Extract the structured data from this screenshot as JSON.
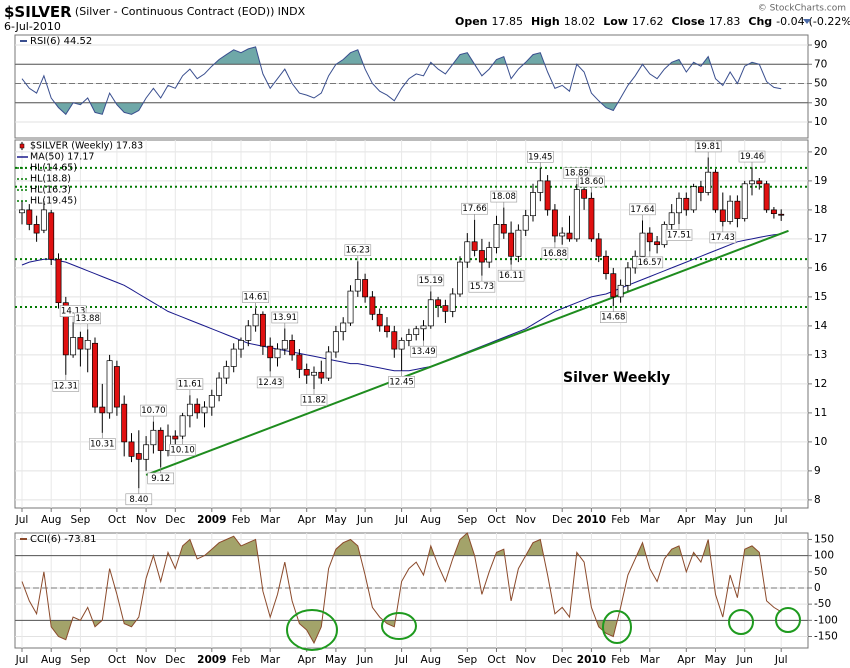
{
  "header": {
    "symbol": "$SILVER",
    "description": "(Silver - Continuous Contract (EOD))",
    "exchange": "INDX",
    "date": "6-Jul-2010",
    "quote": [
      {
        "label": "Open",
        "value": 17.85
      },
      {
        "label": "High",
        "value": 18.02
      },
      {
        "label": "Low",
        "value": 17.62
      },
      {
        "label": "Close",
        "value": 17.83
      },
      {
        "label": "Chg",
        "value": -0.04,
        "extra": "(-0.22%)"
      }
    ],
    "credit": "© StockCharts.com"
  },
  "chart_data": [
    {
      "type": "line",
      "title": "RSI(6) 44.52",
      "color": "#3a4f8f",
      "fill_color": "#6fa8a8",
      "values": [
        55,
        45,
        40,
        58,
        35,
        25,
        18,
        30,
        28,
        35,
        20,
        18,
        40,
        28,
        20,
        18,
        22,
        35,
        45,
        35,
        48,
        45,
        58,
        65,
        55,
        60,
        68,
        75,
        80,
        85,
        82,
        86,
        88,
        60,
        45,
        55,
        65,
        50,
        40,
        38,
        35,
        40,
        58,
        70,
        75,
        82,
        85,
        65,
        50,
        42,
        38,
        32,
        45,
        55,
        60,
        58,
        72,
        65,
        60,
        70,
        80,
        82,
        70,
        58,
        65,
        75,
        78,
        55,
        65,
        72,
        80,
        82,
        62,
        45,
        48,
        42,
        70,
        62,
        40,
        32,
        25,
        22,
        35,
        48,
        58,
        70,
        60,
        55,
        65,
        72,
        75,
        62,
        72,
        68,
        78,
        55,
        48,
        62,
        50,
        68,
        72,
        70,
        52,
        46,
        44.52
      ],
      "ylim": [
        -6.6,
        100.4
      ],
      "yticks": [
        10,
        30,
        50,
        70,
        90
      ],
      "bands": {
        "upper": 70,
        "center": 50,
        "lower": 30
      }
    },
    {
      "type": "candlestick",
      "annotation_text": "Silver Weekly",
      "categories": [
        "Jul",
        null,
        null,
        null,
        "Aug",
        null,
        null,
        null,
        "Sep",
        null,
        null,
        null,
        null,
        "Oct",
        null,
        null,
        null,
        "Nov",
        null,
        null,
        null,
        "Dec",
        null,
        null,
        null,
        null,
        "2009",
        null,
        null,
        null,
        "Feb",
        null,
        null,
        null,
        "Mar",
        null,
        null,
        null,
        null,
        "Apr",
        null,
        null,
        null,
        "May",
        null,
        null,
        null,
        "Jun",
        null,
        null,
        null,
        null,
        "Jul",
        null,
        null,
        null,
        "Aug",
        null,
        null,
        null,
        null,
        "Sep",
        null,
        null,
        null,
        "Oct",
        null,
        null,
        null,
        "Nov",
        null,
        null,
        null,
        null,
        "Dec",
        null,
        null,
        null,
        "2010",
        null,
        null,
        null,
        "Feb",
        null,
        null,
        null,
        "Mar",
        null,
        null,
        null,
        null,
        "Apr",
        null,
        null,
        null,
        "May",
        null,
        null,
        null,
        "Jun",
        null,
        null,
        null,
        null,
        "Jul"
      ],
      "series": [
        {
          "name": "$SILVER (Weekly) 17.83",
          "up_color": "#ffffff",
          "down_color": "#e01010",
          "open": [
            17.9,
            18.0,
            17.5,
            17.3,
            17.9,
            16.3,
            14.8,
            13.0,
            13.6,
            13.2,
            13.4,
            11.2,
            11.0,
            12.6,
            11.3,
            10.0,
            9.6,
            9.4,
            9.9,
            10.4,
            9.7,
            10.2,
            10.2,
            10.9,
            11.3,
            11.0,
            11.2,
            11.6,
            12.2,
            12.6,
            13.2,
            13.5,
            14.0,
            14.4,
            13.3,
            12.9,
            13.2,
            13.5,
            13.0,
            12.5,
            12.3,
            12.4,
            12.2,
            13.1,
            13.8,
            14.1,
            15.2,
            15.6,
            15.0,
            14.4,
            14.0,
            13.8,
            13.2,
            13.5,
            13.7,
            13.9,
            14.0,
            14.9,
            14.7,
            14.5,
            15.1,
            16.2,
            16.9,
            16.6,
            16.2,
            16.7,
            17.5,
            17.2,
            16.4,
            17.3,
            17.8,
            18.6,
            19.0,
            18.0,
            17.1,
            17.2,
            17.0,
            18.7,
            18.4,
            17.0,
            16.4,
            15.8,
            15.0,
            15.4,
            16.0,
            16.4,
            17.2,
            16.9,
            16.8,
            17.5,
            17.9,
            18.4,
            18.0,
            18.8,
            18.6,
            19.3,
            18.0,
            17.6,
            18.3,
            17.7,
            18.9,
            19.0,
            18.9,
            18.0,
            17.85
          ],
          "high": [
            18.3,
            18.2,
            17.8,
            18.3,
            18.0,
            16.5,
            15.0,
            14.13,
            13.8,
            13.88,
            13.6,
            12.0,
            13.0,
            12.8,
            11.6,
            10.3,
            10.4,
            10.2,
            10.7,
            10.5,
            10.6,
            10.4,
            11.0,
            11.61,
            11.5,
            11.4,
            11.8,
            12.4,
            12.8,
            13.4,
            13.6,
            14.2,
            14.61,
            14.5,
            13.6,
            13.4,
            13.91,
            13.7,
            13.2,
            12.7,
            12.6,
            12.8,
            13.3,
            14.0,
            14.3,
            15.4,
            16.23,
            15.8,
            15.2,
            14.6,
            14.3,
            14.0,
            13.6,
            13.9,
            14.0,
            14.2,
            15.19,
            15.0,
            14.9,
            15.3,
            16.4,
            17.2,
            17.66,
            17.0,
            16.9,
            17.8,
            18.08,
            17.6,
            17.5,
            18.0,
            18.9,
            19.45,
            19.2,
            18.2,
            17.4,
            17.8,
            18.89,
            18.8,
            18.6,
            17.2,
            16.6,
            16.0,
            15.6,
            16.2,
            16.6,
            17.64,
            17.4,
            17.1,
            17.6,
            18.2,
            18.6,
            18.6,
            18.9,
            19.0,
            19.81,
            19.4,
            18.6,
            18.5,
            18.5,
            19.0,
            19.46,
            19.1,
            19.0,
            18.1,
            18.02
          ],
          "low": [
            17.5,
            17.3,
            16.9,
            17.2,
            16.1,
            14.6,
            12.31,
            12.9,
            12.6,
            12.4,
            11.0,
            10.31,
            10.8,
            10.9,
            9.5,
            9.3,
            8.4,
            9.0,
            9.6,
            9.12,
            9.5,
            9.8,
            10.1,
            10.5,
            10.8,
            10.5,
            10.9,
            11.4,
            12.0,
            12.4,
            12.9,
            13.3,
            13.8,
            13.0,
            12.43,
            12.6,
            13.0,
            12.8,
            12.2,
            12.0,
            11.82,
            12.0,
            12.1,
            12.9,
            13.5,
            14.0,
            15.0,
            14.8,
            14.2,
            13.8,
            13.6,
            12.9,
            12.45,
            13.3,
            13.5,
            13.49,
            13.9,
            14.3,
            14.1,
            14.3,
            15.0,
            16.0,
            16.4,
            15.73,
            16.0,
            16.5,
            17.0,
            16.11,
            16.2,
            17.1,
            17.6,
            18.3,
            17.8,
            16.88,
            16.8,
            16.9,
            16.9,
            18.0,
            16.9,
            16.2,
            15.6,
            14.68,
            14.8,
            15.2,
            15.8,
            16.2,
            16.57,
            16.5,
            16.7,
            17.3,
            17.51,
            17.8,
            17.9,
            18.3,
            18.5,
            17.9,
            17.43,
            17.5,
            17.4,
            17.6,
            18.5,
            18.7,
            17.9,
            17.7,
            17.62
          ],
          "close": [
            18.0,
            17.5,
            17.2,
            18.0,
            16.3,
            14.8,
            13.0,
            13.6,
            13.2,
            13.5,
            11.2,
            11.0,
            12.8,
            11.2,
            10.0,
            9.5,
            9.4,
            9.9,
            10.4,
            9.7,
            10.2,
            10.1,
            10.9,
            11.3,
            11.0,
            11.2,
            11.6,
            12.2,
            12.6,
            13.2,
            13.5,
            14.0,
            14.4,
            13.3,
            12.9,
            13.2,
            13.5,
            13.0,
            12.5,
            12.3,
            12.4,
            12.2,
            13.1,
            13.8,
            14.1,
            15.2,
            15.6,
            15.0,
            14.4,
            14.0,
            13.8,
            13.2,
            13.5,
            13.7,
            13.9,
            14.0,
            14.9,
            14.7,
            14.5,
            15.1,
            16.2,
            16.9,
            16.6,
            16.2,
            16.7,
            17.5,
            17.2,
            16.4,
            17.3,
            17.8,
            18.6,
            19.0,
            18.0,
            17.1,
            17.2,
            17.0,
            18.7,
            18.4,
            17.0,
            16.4,
            15.8,
            15.0,
            15.4,
            16.0,
            16.4,
            17.2,
            16.9,
            16.8,
            17.5,
            17.9,
            18.4,
            18.0,
            18.8,
            18.6,
            19.3,
            18.0,
            17.6,
            18.3,
            17.7,
            18.9,
            19.0,
            18.9,
            18.0,
            17.87,
            17.83
          ]
        },
        {
          "name": "MA(50) 17.17",
          "color": "#1a1a8c",
          "values": [
            16.1,
            16.2,
            16.25,
            16.3,
            16.3,
            16.25,
            16.2,
            16.1,
            16.0,
            15.9,
            15.8,
            15.7,
            15.6,
            15.5,
            15.4,
            15.25,
            15.1,
            14.95,
            14.8,
            14.65,
            14.5,
            14.4,
            14.3,
            14.2,
            14.1,
            14.0,
            13.9,
            13.8,
            13.7,
            13.6,
            13.5,
            13.4,
            13.35,
            13.3,
            13.25,
            13.2,
            13.15,
            13.1,
            13.05,
            13.0,
            12.95,
            12.9,
            12.85,
            12.8,
            12.75,
            12.7,
            12.7,
            12.65,
            12.6,
            12.55,
            12.5,
            12.45,
            12.45,
            12.45,
            12.5,
            12.55,
            12.6,
            12.7,
            12.8,
            12.9,
            13.0,
            13.1,
            13.2,
            13.3,
            13.4,
            13.5,
            13.6,
            13.7,
            13.8,
            13.9,
            14.05,
            14.2,
            14.35,
            14.5,
            14.6,
            14.7,
            14.8,
            14.9,
            15.0,
            15.05,
            15.1,
            15.2,
            15.3,
            15.4,
            15.5,
            15.6,
            15.7,
            15.8,
            15.9,
            16.0,
            16.1,
            16.2,
            16.3,
            16.4,
            16.5,
            16.6,
            16.7,
            16.8,
            16.9,
            16.95,
            17.0,
            17.05,
            17.1,
            17.14,
            17.17
          ]
        },
        {
          "name": "HL(14.65)",
          "color": "#007a00",
          "value": 14.65
        },
        {
          "name": "HL(18.8)",
          "color": "#007a00",
          "value": 18.8
        },
        {
          "name": "HL(16.3)",
          "color": "#007a00",
          "value": 16.3
        },
        {
          "name": "HL(19.45)",
          "color": "#007a00",
          "value": 19.45
        }
      ],
      "annotations": [
        12.31,
        14.13,
        13.88,
        10.31,
        {
          "value": 8.4,
          "label": "8.40"
        },
        {
          "value": 10.7,
          "label": "10.70"
        },
        9.12,
        11.61,
        {
          "value": 10.1,
          "label": "10.10"
        },
        14.61,
        12.43,
        13.91,
        11.82,
        16.23,
        12.45,
        15.19,
        13.49,
        17.66,
        15.73,
        18.08,
        16.11,
        19.45,
        16.88,
        18.89,
        14.68,
        17.64,
        16.57,
        {
          "value": 18.6,
          "label": "18.60"
        },
        17.51,
        19.81,
        17.43,
        19.46
      ],
      "trendline": {
        "color": "#1e8c1e",
        "x": [
          17,
          105
        ],
        "values": [
          8.86,
          17.28
        ]
      },
      "ylim": [
        7.72,
        20.41
      ],
      "yticks": [
        8,
        9,
        10,
        11,
        12,
        13,
        14,
        15,
        16,
        17,
        18,
        19,
        20
      ],
      "grid": true
    },
    {
      "type": "line",
      "title": "CCI(6) -73.81",
      "color": "#8b4a2b",
      "fill_color": "#a3a36a",
      "categories": [
        "Jul",
        null,
        null,
        null,
        "Aug",
        null,
        null,
        null,
        "Sep",
        null,
        null,
        null,
        null,
        "Oct",
        null,
        null,
        null,
        "Nov",
        null,
        null,
        null,
        "Dec",
        null,
        null,
        null,
        null,
        "2009",
        null,
        null,
        null,
        "Feb",
        null,
        null,
        null,
        "Mar",
        null,
        null,
        null,
        null,
        "Apr",
        null,
        null,
        null,
        "May",
        null,
        null,
        null,
        "Jun",
        null,
        null,
        null,
        null,
        "Jul",
        null,
        null,
        null,
        "Aug",
        null,
        null,
        null,
        null,
        "Sep",
        null,
        null,
        null,
        "Oct",
        null,
        null,
        null,
        "Nov",
        null,
        null,
        null,
        null,
        "Dec",
        null,
        null,
        null,
        "2010",
        null,
        null,
        null,
        "Feb",
        null,
        null,
        null,
        "Mar",
        null,
        null,
        null,
        null,
        "Apr",
        null,
        null,
        null,
        "May",
        null,
        null,
        null,
        "Jun",
        null,
        null,
        null,
        null,
        "Jul"
      ],
      "values": [
        20,
        -40,
        -80,
        50,
        -120,
        -150,
        -160,
        -90,
        -100,
        -60,
        -120,
        -100,
        60,
        -20,
        -110,
        -120,
        -90,
        30,
        100,
        20,
        110,
        60,
        130,
        150,
        90,
        100,
        120,
        140,
        150,
        160,
        130,
        140,
        150,
        -10,
        -90,
        -20,
        80,
        -40,
        -110,
        -130,
        -170,
        -120,
        60,
        120,
        140,
        150,
        130,
        40,
        -60,
        -90,
        -110,
        -120,
        20,
        60,
        80,
        40,
        130,
        70,
        20,
        90,
        150,
        170,
        100,
        -20,
        50,
        110,
        120,
        -40,
        60,
        100,
        140,
        150,
        40,
        -80,
        -60,
        -90,
        110,
        80,
        -60,
        -120,
        -140,
        -150,
        -60,
        40,
        90,
        140,
        60,
        20,
        90,
        120,
        130,
        50,
        110,
        80,
        150,
        -20,
        -90,
        40,
        -30,
        120,
        130,
        110,
        -40,
        -60,
        -73.81
      ],
      "ylim": [
        -185.6,
        170
      ],
      "yticks": [
        -150,
        -100,
        -50,
        0,
        50,
        100,
        150
      ],
      "bands": {
        "upper": 100,
        "center": 0,
        "lower": -100
      }
    }
  ]
}
